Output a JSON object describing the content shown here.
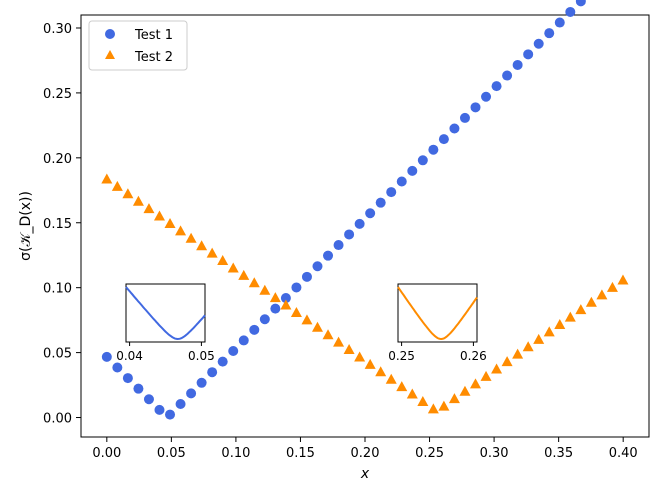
{
  "chart_data": {
    "type": "scatter",
    "title": "",
    "xlabel": "x",
    "ylabel": "σ(𝒦_D(x))",
    "xlim": [
      -0.02,
      0.42
    ],
    "ylim": [
      -0.015,
      0.31
    ],
    "xticks": [
      0.0,
      0.05,
      0.1,
      0.15,
      0.2,
      0.25,
      0.3,
      0.35,
      0.4
    ],
    "xtick_labels": [
      "0.00",
      "0.05",
      "0.10",
      "0.15",
      "0.20",
      "0.25",
      "0.30",
      "0.35",
      "0.40"
    ],
    "yticks": [
      0.0,
      0.05,
      0.1,
      0.15,
      0.2,
      0.25,
      0.3
    ],
    "ytick_labels": [
      "0.00",
      "0.05",
      "0.10",
      "0.15",
      "0.20",
      "0.25",
      "0.30"
    ],
    "grid": false,
    "legend_position": "top-left",
    "series": [
      {
        "name": "Test 1",
        "marker": "circle",
        "color": "#4169e1",
        "x_start": 0.0,
        "x_step": 0.00816,
        "count": 50,
        "y_formula": "abs(x - 0.0467)",
        "min_x": 0.0467
      },
      {
        "name": "Test 2",
        "marker": "triangle",
        "color": "#ff8c00",
        "x_start": 0.0,
        "x_step": 0.00816,
        "count": 50,
        "y_formula": "0.7*abs(x - 0.2555)+0.0045",
        "min_x": 0.2555
      }
    ],
    "insets": [
      {
        "series": "Test 1",
        "xlim": [
          0.0395,
          0.0505
        ],
        "xtick_labels": [
          "0.04",
          "0.05"
        ],
        "xticks": [
          0.04,
          0.05
        ],
        "color": "#4169e1"
      },
      {
        "series": "Test 2",
        "xlim": [
          0.2495,
          0.2605
        ],
        "xtick_labels": [
          "0.25",
          "0.26"
        ],
        "xticks": [
          0.25,
          0.26
        ],
        "color": "#ff8c00"
      }
    ]
  }
}
